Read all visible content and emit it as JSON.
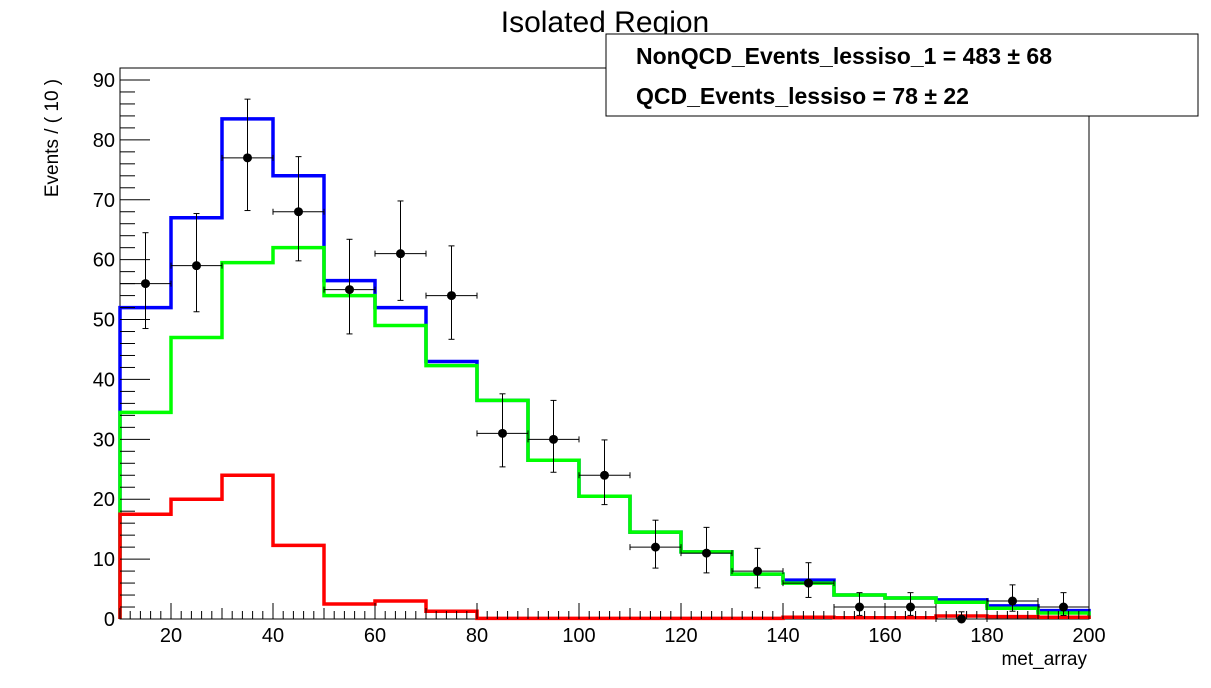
{
  "chart_data": {
    "type": "line",
    "title": "Isolated Region",
    "xlabel": "met_array",
    "ylabel": "Events / ( 10 )",
    "xlim": [
      10,
      200
    ],
    "ylim": [
      0,
      92
    ],
    "x_ticks": [
      "20",
      "40",
      "60",
      "80",
      "100",
      "120",
      "140",
      "160",
      "180",
      "200"
    ],
    "y_ticks": [
      "0",
      "10",
      "20",
      "30",
      "40",
      "50",
      "60",
      "70",
      "80",
      "90"
    ],
    "bin_edges": [
      10,
      20,
      30,
      40,
      50,
      60,
      70,
      80,
      90,
      100,
      110,
      120,
      130,
      140,
      150,
      160,
      170,
      180,
      190,
      200
    ],
    "legend": {
      "position": "top-right",
      "entries": [
        {
          "name": "NonQCD_Events_lessiso_1",
          "value": "483",
          "error": "68"
        },
        {
          "name": "QCD_Events_lessiso",
          "value": "78",
          "error": "22"
        }
      ]
    },
    "series": [
      {
        "kind": "step",
        "color": "#0000ff",
        "values": [
          52,
          67,
          83.5,
          74,
          56.5,
          52,
          43,
          36.5,
          26.5,
          20.5,
          14.5,
          11.2,
          7.5,
          6.5,
          4,
          3.5,
          3.2,
          2.2,
          1.4
        ]
      },
      {
        "kind": "step",
        "color": "#00ff00",
        "values": [
          34.5,
          47,
          59.5,
          62,
          54,
          49,
          42.3,
          36.5,
          26.5,
          20.5,
          14.5,
          11.2,
          7.5,
          6,
          4,
          3.5,
          2.8,
          1.8,
          1
        ]
      },
      {
        "kind": "step",
        "color": "#ff0000",
        "values": [
          17.5,
          20,
          24,
          12.3,
          2.5,
          3,
          1.3,
          0.1,
          0.1,
          0.1,
          0.1,
          0.1,
          0.1,
          0.3,
          0.2,
          0.2,
          0.5,
          0.4,
          0.3
        ]
      },
      {
        "kind": "points",
        "color": "#000000",
        "x": [
          15,
          25,
          35,
          45,
          55,
          65,
          75,
          85,
          95,
          105,
          115,
          125,
          135,
          145,
          155,
          165,
          175,
          185,
          195
        ],
        "values": [
          56,
          59,
          77,
          68,
          55,
          61,
          54,
          31,
          30,
          24,
          12,
          11,
          8,
          6,
          2,
          2,
          0,
          3,
          2
        ],
        "err_low": [
          7.5,
          7.7,
          8.8,
          8.2,
          7.4,
          7.8,
          7.3,
          5.6,
          5.5,
          4.9,
          3.5,
          3.3,
          2.8,
          2.4,
          1.4,
          1.4,
          0,
          1.7,
          1.4
        ],
        "err_high": [
          8.5,
          8.7,
          9.8,
          9.2,
          8.4,
          8.8,
          8.3,
          6.6,
          6.5,
          5.9,
          4.5,
          4.3,
          3.8,
          3.4,
          2.4,
          2.4,
          1.2,
          2.7,
          2.4
        ]
      }
    ]
  }
}
